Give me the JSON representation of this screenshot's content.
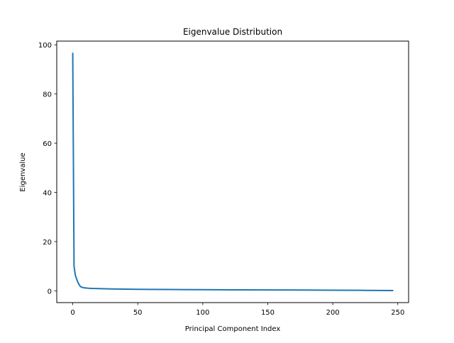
{
  "chart_data": {
    "type": "line",
    "title": "Eigenvalue Distribution",
    "xlabel": "Principal Component Index",
    "ylabel": "Eigenvalue",
    "xlim": [
      -12.3,
      258.3
    ],
    "ylim": [
      -4.8,
      101.5
    ],
    "x_ticks": [
      0,
      50,
      100,
      150,
      200,
      250
    ],
    "y_ticks": [
      0,
      20,
      40,
      60,
      80,
      100
    ],
    "grid": false,
    "legend": "none",
    "series": [
      {
        "color": "#1f77b4",
        "points": [
          [
            0,
            96.5
          ],
          [
            1,
            10.0
          ],
          [
            2,
            6.3
          ],
          [
            3,
            4.8
          ],
          [
            4,
            3.4
          ],
          [
            5,
            2.4
          ],
          [
            6,
            1.7
          ],
          [
            7,
            1.45
          ],
          [
            8,
            1.3
          ],
          [
            10,
            1.15
          ],
          [
            12,
            1.05
          ],
          [
            15,
            0.95
          ],
          [
            20,
            0.88
          ],
          [
            25,
            0.82
          ],
          [
            30,
            0.76
          ],
          [
            40,
            0.68
          ],
          [
            50,
            0.62
          ],
          [
            60,
            0.57
          ],
          [
            75,
            0.52
          ],
          [
            100,
            0.46
          ],
          [
            125,
            0.4
          ],
          [
            150,
            0.35
          ],
          [
            175,
            0.3
          ],
          [
            200,
            0.24
          ],
          [
            225,
            0.18
          ],
          [
            246,
            0.1
          ]
        ]
      }
    ]
  }
}
